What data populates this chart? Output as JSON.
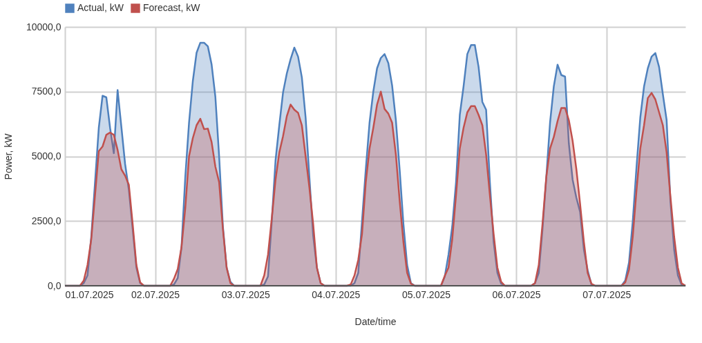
{
  "chart_data": {
    "type": "area",
    "xlabel": "Date/time",
    "ylabel": "Power, kW",
    "legend": "top",
    "grid": true,
    "xlim": [
      "2025-07-01T00:00",
      "2025-07-07T21:00"
    ],
    "xticks": [
      {
        "value": "2025-07-01",
        "label": "01.07.2025"
      },
      {
        "value": "2025-07-02",
        "label": "02.07.2025"
      },
      {
        "value": "2025-07-03",
        "label": "03.07.2025"
      },
      {
        "value": "2025-07-04",
        "label": "04.07.2025"
      },
      {
        "value": "2025-07-05",
        "label": "05.07.2025"
      },
      {
        "value": "2025-07-06",
        "label": "06.07.2025"
      },
      {
        "value": "2025-07-07",
        "label": "07.07.2025"
      }
    ],
    "ylim": [
      0,
      10000
    ],
    "yticks": [
      {
        "value": 0,
        "label": "0,0"
      },
      {
        "value": 2500,
        "label": "2500,0"
      },
      {
        "value": 5000,
        "label": "5000,0"
      },
      {
        "value": 7500,
        "label": "7500,0"
      },
      {
        "value": 10000,
        "label": "10000,0"
      }
    ],
    "x": [
      "2025-07-01T00:00",
      "2025-07-01T01:00",
      "2025-07-01T02:00",
      "2025-07-01T03:00",
      "2025-07-01T04:00",
      "2025-07-01T05:00",
      "2025-07-01T06:00",
      "2025-07-01T07:00",
      "2025-07-01T08:00",
      "2025-07-01T09:00",
      "2025-07-01T10:00",
      "2025-07-01T11:00",
      "2025-07-01T12:00",
      "2025-07-01T13:00",
      "2025-07-01T14:00",
      "2025-07-01T15:00",
      "2025-07-01T16:00",
      "2025-07-01T17:00",
      "2025-07-01T18:00",
      "2025-07-01T19:00",
      "2025-07-01T20:00",
      "2025-07-01T21:00",
      "2025-07-01T22:00",
      "2025-07-01T23:00",
      "2025-07-02T00:00",
      "2025-07-02T01:00",
      "2025-07-02T02:00",
      "2025-07-02T03:00",
      "2025-07-02T04:00",
      "2025-07-02T05:00",
      "2025-07-02T06:00",
      "2025-07-02T07:00",
      "2025-07-02T08:00",
      "2025-07-02T09:00",
      "2025-07-02T10:00",
      "2025-07-02T11:00",
      "2025-07-02T12:00",
      "2025-07-02T13:00",
      "2025-07-02T14:00",
      "2025-07-02T15:00",
      "2025-07-02T16:00",
      "2025-07-02T17:00",
      "2025-07-02T18:00",
      "2025-07-02T19:00",
      "2025-07-02T20:00",
      "2025-07-02T21:00",
      "2025-07-02T22:00",
      "2025-07-02T23:00",
      "2025-07-03T00:00",
      "2025-07-03T01:00",
      "2025-07-03T02:00",
      "2025-07-03T03:00",
      "2025-07-03T04:00",
      "2025-07-03T05:00",
      "2025-07-03T06:00",
      "2025-07-03T07:00",
      "2025-07-03T08:00",
      "2025-07-03T09:00",
      "2025-07-03T10:00",
      "2025-07-03T11:00",
      "2025-07-03T12:00",
      "2025-07-03T13:00",
      "2025-07-03T14:00",
      "2025-07-03T15:00",
      "2025-07-03T16:00",
      "2025-07-03T17:00",
      "2025-07-03T18:00",
      "2025-07-03T19:00",
      "2025-07-03T20:00",
      "2025-07-03T21:00",
      "2025-07-03T22:00",
      "2025-07-03T23:00",
      "2025-07-04T00:00",
      "2025-07-04T01:00",
      "2025-07-04T02:00",
      "2025-07-04T03:00",
      "2025-07-04T04:00",
      "2025-07-04T05:00",
      "2025-07-04T06:00",
      "2025-07-04T07:00",
      "2025-07-04T08:00",
      "2025-07-04T09:00",
      "2025-07-04T10:00",
      "2025-07-04T11:00",
      "2025-07-04T12:00",
      "2025-07-04T13:00",
      "2025-07-04T14:00",
      "2025-07-04T15:00",
      "2025-07-04T16:00",
      "2025-07-04T17:00",
      "2025-07-04T18:00",
      "2025-07-04T19:00",
      "2025-07-04T20:00",
      "2025-07-04T21:00",
      "2025-07-04T22:00",
      "2025-07-04T23:00",
      "2025-07-05T00:00",
      "2025-07-05T01:00",
      "2025-07-05T02:00",
      "2025-07-05T03:00",
      "2025-07-05T04:00",
      "2025-07-05T05:00",
      "2025-07-05T06:00",
      "2025-07-05T07:00",
      "2025-07-05T08:00",
      "2025-07-05T09:00",
      "2025-07-05T10:00",
      "2025-07-05T11:00",
      "2025-07-05T12:00",
      "2025-07-05T13:00",
      "2025-07-05T14:00",
      "2025-07-05T15:00",
      "2025-07-05T16:00",
      "2025-07-05T17:00",
      "2025-07-05T18:00",
      "2025-07-05T19:00",
      "2025-07-05T20:00",
      "2025-07-05T21:00",
      "2025-07-05T22:00",
      "2025-07-05T23:00",
      "2025-07-06T00:00",
      "2025-07-06T01:00",
      "2025-07-06T02:00",
      "2025-07-06T03:00",
      "2025-07-06T04:00",
      "2025-07-06T05:00",
      "2025-07-06T06:00",
      "2025-07-06T07:00",
      "2025-07-06T08:00",
      "2025-07-06T09:00",
      "2025-07-06T10:00",
      "2025-07-06T11:00",
      "2025-07-06T12:00",
      "2025-07-06T13:00",
      "2025-07-06T14:00",
      "2025-07-06T15:00",
      "2025-07-06T16:00",
      "2025-07-06T17:00",
      "2025-07-06T18:00",
      "2025-07-06T19:00",
      "2025-07-06T20:00",
      "2025-07-06T21:00",
      "2025-07-06T22:00",
      "2025-07-06T23:00",
      "2025-07-07T00:00",
      "2025-07-07T01:00",
      "2025-07-07T02:00",
      "2025-07-07T03:00",
      "2025-07-07T04:00",
      "2025-07-07T05:00",
      "2025-07-07T06:00",
      "2025-07-07T07:00",
      "2025-07-07T08:00",
      "2025-07-07T09:00",
      "2025-07-07T10:00",
      "2025-07-07T11:00",
      "2025-07-07T12:00",
      "2025-07-07T13:00",
      "2025-07-07T14:00",
      "2025-07-07T15:00",
      "2025-07-07T16:00",
      "2025-07-07T17:00",
      "2025-07-07T18:00",
      "2025-07-07T19:00",
      "2025-07-07T20:00",
      "2025-07-07T21:00"
    ],
    "series": [
      {
        "name": "Actual, kW",
        "color": "#4f81bd",
        "values": [
          0,
          0,
          0,
          0,
          0,
          100,
          400,
          1900,
          4000,
          6100,
          7340,
          7280,
          6100,
          5120,
          7560,
          6140,
          4700,
          3700,
          2200,
          700,
          100,
          0,
          0,
          0,
          0,
          0,
          0,
          0,
          0,
          50,
          300,
          1500,
          4200,
          6300,
          7900,
          9000,
          9390,
          9390,
          9250,
          8550,
          7300,
          5000,
          2300,
          700,
          150,
          0,
          0,
          0,
          0,
          0,
          0,
          0,
          0,
          50,
          360,
          2500,
          4840,
          6200,
          7470,
          8200,
          8750,
          9200,
          8850,
          8050,
          6500,
          4200,
          1960,
          700,
          100,
          0,
          0,
          0,
          0,
          0,
          0,
          0,
          0,
          100,
          500,
          2500,
          4500,
          6300,
          7500,
          8400,
          8800,
          8950,
          8600,
          7740,
          6400,
          4500,
          2400,
          800,
          100,
          0,
          0,
          0,
          0,
          0,
          0,
          0,
          0,
          350,
          1200,
          2300,
          4000,
          6600,
          7700,
          8950,
          9300,
          9300,
          8450,
          7100,
          6800,
          4000,
          1700,
          500,
          80,
          0,
          0,
          0,
          0,
          0,
          0,
          0,
          0,
          100,
          500,
          2200,
          4180,
          6300,
          7700,
          8540,
          8140,
          8080,
          5500,
          4100,
          3400,
          2850,
          1400,
          600,
          50,
          0,
          0,
          0,
          0,
          0,
          0,
          0,
          0,
          200,
          900,
          2500,
          4600,
          6500,
          7700,
          8400,
          8850,
          8990,
          8450,
          7400,
          6400,
          3300,
          1400,
          400,
          30,
          0
        ]
      },
      {
        "name": "Forecast, kW",
        "color": "#c0504d",
        "values": [
          0,
          0,
          0,
          0,
          0,
          200,
          800,
          1800,
          3500,
          5200,
          5380,
          5830,
          5920,
          5830,
          5250,
          4500,
          4250,
          3900,
          2400,
          800,
          130,
          0,
          0,
          0,
          0,
          0,
          0,
          0,
          0,
          270,
          650,
          1500,
          3000,
          5000,
          5700,
          6200,
          6450,
          6050,
          6070,
          5550,
          4600,
          4000,
          2200,
          700,
          100,
          0,
          0,
          0,
          0,
          0,
          0,
          0,
          0,
          400,
          1200,
          2600,
          4100,
          5150,
          5780,
          6550,
          7000,
          6800,
          6680,
          6200,
          5000,
          3800,
          2400,
          700,
          100,
          0,
          0,
          0,
          0,
          0,
          0,
          0,
          50,
          400,
          1000,
          2000,
          4000,
          5300,
          6100,
          7000,
          7500,
          6830,
          6650,
          6300,
          5070,
          3300,
          1700,
          500,
          80,
          0,
          0,
          0,
          0,
          0,
          0,
          0,
          0,
          380,
          700,
          1800,
          3500,
          5300,
          6100,
          6700,
          6940,
          6940,
          6600,
          6200,
          5070,
          3500,
          2000,
          700,
          150,
          0,
          0,
          0,
          0,
          0,
          0,
          0,
          0,
          100,
          800,
          2400,
          4200,
          5300,
          5750,
          6360,
          6870,
          6870,
          6400,
          5600,
          4500,
          3150,
          1700,
          500,
          80,
          0,
          0,
          0,
          0,
          0,
          0,
          0,
          0,
          130,
          620,
          1900,
          3700,
          5300,
          6200,
          7250,
          7450,
          7200,
          6700,
          6200,
          5150,
          3470,
          1900,
          700,
          90,
          0
        ]
      }
    ]
  }
}
